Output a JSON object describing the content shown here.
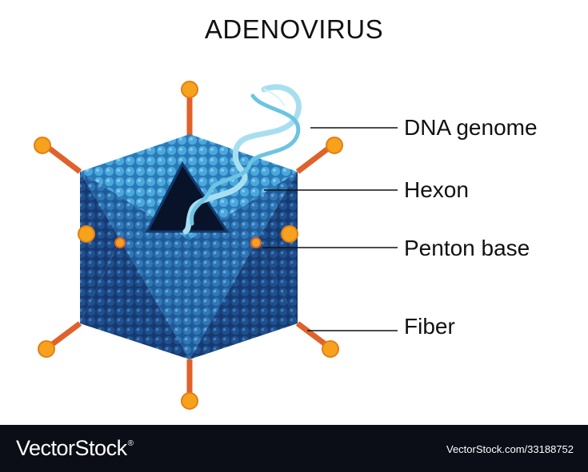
{
  "title": "ADENOVIRUS",
  "labels": {
    "dna_genome": "DNA genome",
    "hexon": "Hexon",
    "penton_base": "Penton base",
    "fiber": "Fiber"
  },
  "footer": {
    "brand": "VectorStock",
    "brand_mark": "®",
    "stock_id": "VectorStock.com/33188752"
  },
  "colors": {
    "capsid_light": "#3a97cf",
    "capsid_dark": "#1a3f7a",
    "fiber": "#e0622b",
    "knob": "#f6a21d",
    "dna": "#8fd3ea",
    "footer_bg": "#0b0d17"
  }
}
